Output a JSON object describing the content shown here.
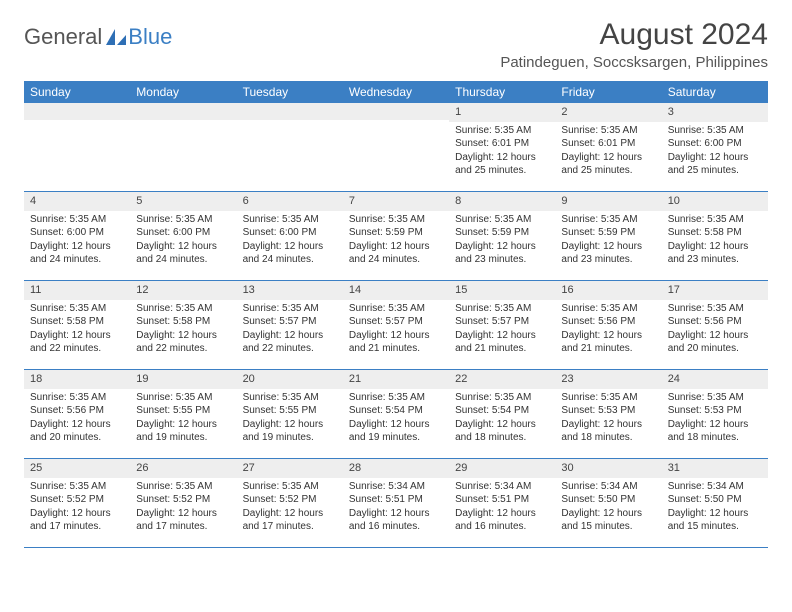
{
  "logo": {
    "general": "General",
    "blue": "Blue"
  },
  "title": "August 2024",
  "location": "Patindeguen, Soccsksargen, Philippines",
  "colors": {
    "header_bg": "#3b7fc4",
    "header_text": "#ffffff",
    "daynum_bg": "#eeeeee",
    "border": "#3b7fc4",
    "text": "#333333"
  },
  "weekdays": [
    "Sunday",
    "Monday",
    "Tuesday",
    "Wednesday",
    "Thursday",
    "Friday",
    "Saturday"
  ],
  "weeks": [
    [
      {
        "n": "",
        "sunrise": "",
        "sunset": "",
        "daylight1": "",
        "daylight2": ""
      },
      {
        "n": "",
        "sunrise": "",
        "sunset": "",
        "daylight1": "",
        "daylight2": ""
      },
      {
        "n": "",
        "sunrise": "",
        "sunset": "",
        "daylight1": "",
        "daylight2": ""
      },
      {
        "n": "",
        "sunrise": "",
        "sunset": "",
        "daylight1": "",
        "daylight2": ""
      },
      {
        "n": "1",
        "sunrise": "Sunrise: 5:35 AM",
        "sunset": "Sunset: 6:01 PM",
        "daylight1": "Daylight: 12 hours",
        "daylight2": "and 25 minutes."
      },
      {
        "n": "2",
        "sunrise": "Sunrise: 5:35 AM",
        "sunset": "Sunset: 6:01 PM",
        "daylight1": "Daylight: 12 hours",
        "daylight2": "and 25 minutes."
      },
      {
        "n": "3",
        "sunrise": "Sunrise: 5:35 AM",
        "sunset": "Sunset: 6:00 PM",
        "daylight1": "Daylight: 12 hours",
        "daylight2": "and 25 minutes."
      }
    ],
    [
      {
        "n": "4",
        "sunrise": "Sunrise: 5:35 AM",
        "sunset": "Sunset: 6:00 PM",
        "daylight1": "Daylight: 12 hours",
        "daylight2": "and 24 minutes."
      },
      {
        "n": "5",
        "sunrise": "Sunrise: 5:35 AM",
        "sunset": "Sunset: 6:00 PM",
        "daylight1": "Daylight: 12 hours",
        "daylight2": "and 24 minutes."
      },
      {
        "n": "6",
        "sunrise": "Sunrise: 5:35 AM",
        "sunset": "Sunset: 6:00 PM",
        "daylight1": "Daylight: 12 hours",
        "daylight2": "and 24 minutes."
      },
      {
        "n": "7",
        "sunrise": "Sunrise: 5:35 AM",
        "sunset": "Sunset: 5:59 PM",
        "daylight1": "Daylight: 12 hours",
        "daylight2": "and 24 minutes."
      },
      {
        "n": "8",
        "sunrise": "Sunrise: 5:35 AM",
        "sunset": "Sunset: 5:59 PM",
        "daylight1": "Daylight: 12 hours",
        "daylight2": "and 23 minutes."
      },
      {
        "n": "9",
        "sunrise": "Sunrise: 5:35 AM",
        "sunset": "Sunset: 5:59 PM",
        "daylight1": "Daylight: 12 hours",
        "daylight2": "and 23 minutes."
      },
      {
        "n": "10",
        "sunrise": "Sunrise: 5:35 AM",
        "sunset": "Sunset: 5:58 PM",
        "daylight1": "Daylight: 12 hours",
        "daylight2": "and 23 minutes."
      }
    ],
    [
      {
        "n": "11",
        "sunrise": "Sunrise: 5:35 AM",
        "sunset": "Sunset: 5:58 PM",
        "daylight1": "Daylight: 12 hours",
        "daylight2": "and 22 minutes."
      },
      {
        "n": "12",
        "sunrise": "Sunrise: 5:35 AM",
        "sunset": "Sunset: 5:58 PM",
        "daylight1": "Daylight: 12 hours",
        "daylight2": "and 22 minutes."
      },
      {
        "n": "13",
        "sunrise": "Sunrise: 5:35 AM",
        "sunset": "Sunset: 5:57 PM",
        "daylight1": "Daylight: 12 hours",
        "daylight2": "and 22 minutes."
      },
      {
        "n": "14",
        "sunrise": "Sunrise: 5:35 AM",
        "sunset": "Sunset: 5:57 PM",
        "daylight1": "Daylight: 12 hours",
        "daylight2": "and 21 minutes."
      },
      {
        "n": "15",
        "sunrise": "Sunrise: 5:35 AM",
        "sunset": "Sunset: 5:57 PM",
        "daylight1": "Daylight: 12 hours",
        "daylight2": "and 21 minutes."
      },
      {
        "n": "16",
        "sunrise": "Sunrise: 5:35 AM",
        "sunset": "Sunset: 5:56 PM",
        "daylight1": "Daylight: 12 hours",
        "daylight2": "and 21 minutes."
      },
      {
        "n": "17",
        "sunrise": "Sunrise: 5:35 AM",
        "sunset": "Sunset: 5:56 PM",
        "daylight1": "Daylight: 12 hours",
        "daylight2": "and 20 minutes."
      }
    ],
    [
      {
        "n": "18",
        "sunrise": "Sunrise: 5:35 AM",
        "sunset": "Sunset: 5:56 PM",
        "daylight1": "Daylight: 12 hours",
        "daylight2": "and 20 minutes."
      },
      {
        "n": "19",
        "sunrise": "Sunrise: 5:35 AM",
        "sunset": "Sunset: 5:55 PM",
        "daylight1": "Daylight: 12 hours",
        "daylight2": "and 19 minutes."
      },
      {
        "n": "20",
        "sunrise": "Sunrise: 5:35 AM",
        "sunset": "Sunset: 5:55 PM",
        "daylight1": "Daylight: 12 hours",
        "daylight2": "and 19 minutes."
      },
      {
        "n": "21",
        "sunrise": "Sunrise: 5:35 AM",
        "sunset": "Sunset: 5:54 PM",
        "daylight1": "Daylight: 12 hours",
        "daylight2": "and 19 minutes."
      },
      {
        "n": "22",
        "sunrise": "Sunrise: 5:35 AM",
        "sunset": "Sunset: 5:54 PM",
        "daylight1": "Daylight: 12 hours",
        "daylight2": "and 18 minutes."
      },
      {
        "n": "23",
        "sunrise": "Sunrise: 5:35 AM",
        "sunset": "Sunset: 5:53 PM",
        "daylight1": "Daylight: 12 hours",
        "daylight2": "and 18 minutes."
      },
      {
        "n": "24",
        "sunrise": "Sunrise: 5:35 AM",
        "sunset": "Sunset: 5:53 PM",
        "daylight1": "Daylight: 12 hours",
        "daylight2": "and 18 minutes."
      }
    ],
    [
      {
        "n": "25",
        "sunrise": "Sunrise: 5:35 AM",
        "sunset": "Sunset: 5:52 PM",
        "daylight1": "Daylight: 12 hours",
        "daylight2": "and 17 minutes."
      },
      {
        "n": "26",
        "sunrise": "Sunrise: 5:35 AM",
        "sunset": "Sunset: 5:52 PM",
        "daylight1": "Daylight: 12 hours",
        "daylight2": "and 17 minutes."
      },
      {
        "n": "27",
        "sunrise": "Sunrise: 5:35 AM",
        "sunset": "Sunset: 5:52 PM",
        "daylight1": "Daylight: 12 hours",
        "daylight2": "and 17 minutes."
      },
      {
        "n": "28",
        "sunrise": "Sunrise: 5:34 AM",
        "sunset": "Sunset: 5:51 PM",
        "daylight1": "Daylight: 12 hours",
        "daylight2": "and 16 minutes."
      },
      {
        "n": "29",
        "sunrise": "Sunrise: 5:34 AM",
        "sunset": "Sunset: 5:51 PM",
        "daylight1": "Daylight: 12 hours",
        "daylight2": "and 16 minutes."
      },
      {
        "n": "30",
        "sunrise": "Sunrise: 5:34 AM",
        "sunset": "Sunset: 5:50 PM",
        "daylight1": "Daylight: 12 hours",
        "daylight2": "and 15 minutes."
      },
      {
        "n": "31",
        "sunrise": "Sunrise: 5:34 AM",
        "sunset": "Sunset: 5:50 PM",
        "daylight1": "Daylight: 12 hours",
        "daylight2": "and 15 minutes."
      }
    ]
  ]
}
